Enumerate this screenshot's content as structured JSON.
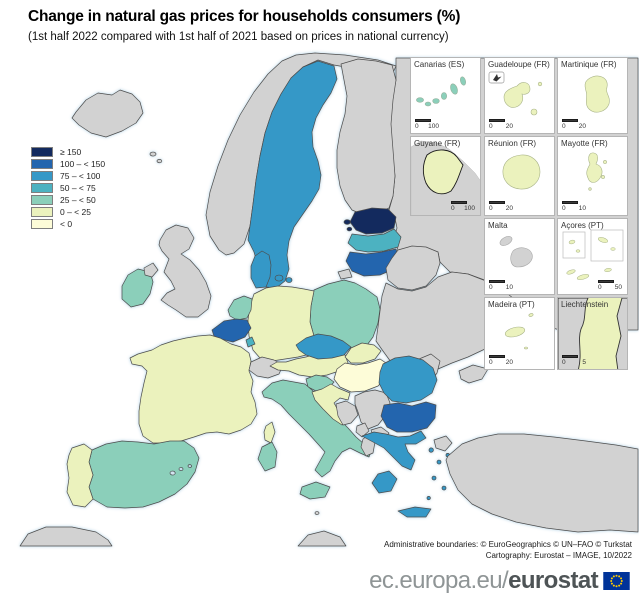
{
  "title": "Change in natural gas prices for households consumers (%)",
  "subtitle": "(1st half 2022 compared with 1st half of 2021 based on prices in national currency)",
  "legend": {
    "items": [
      {
        "label": "≥ 150",
        "category": "ge150"
      },
      {
        "label": "100 – < 150",
        "category": "c100_150"
      },
      {
        "label": "75 – < 100",
        "category": "c75_100"
      },
      {
        "label": "50 – < 75",
        "category": "c50_75"
      },
      {
        "label": "25 – < 50",
        "category": "c25_50"
      },
      {
        "label": "0 – < 25",
        "category": "c0_25"
      },
      {
        "label": "< 0",
        "category": "lt0"
      }
    ]
  },
  "colors": {
    "ge150": "#132a5e",
    "c100_150": "#2365ae",
    "c75_100": "#3598c7",
    "c50_75": "#4cb2c1",
    "c25_50": "#8bcfba",
    "c0_25": "#ebf2bd",
    "lt0": "#fdfcd8",
    "no_data": "#d2d2d2",
    "sea": "#ffffff",
    "eu_flag_blue": "#003399",
    "eu_flag_stars": "#ffcc00"
  },
  "map": {
    "countries": [
      {
        "id": "russia",
        "name": "Russia",
        "category": "no_data"
      },
      {
        "id": "norway",
        "name": "Norway",
        "category": "no_data"
      },
      {
        "id": "finland",
        "name": "Finland",
        "category": "no_data"
      },
      {
        "id": "sweden",
        "name": "Sweden",
        "category": "c75_100"
      },
      {
        "id": "iceland",
        "name": "Iceland",
        "category": "no_data"
      },
      {
        "id": "faroe_islands",
        "name": "Faroe Islands",
        "category": "no_data"
      },
      {
        "id": "estonia",
        "name": "Estonia",
        "category": "ge150"
      },
      {
        "id": "latvia",
        "name": "Latvia",
        "category": "c50_75"
      },
      {
        "id": "lithuania",
        "name": "Lithuania",
        "category": "c100_150"
      },
      {
        "id": "belarus",
        "name": "Belarus",
        "category": "no_data"
      },
      {
        "id": "ukraine",
        "name": "Ukraine",
        "category": "no_data"
      },
      {
        "id": "moldova",
        "name": "Moldova",
        "category": "no_data"
      },
      {
        "id": "poland",
        "name": "Poland",
        "category": "c25_50"
      },
      {
        "id": "germany",
        "name": "Germany",
        "category": "c0_25"
      },
      {
        "id": "denmark",
        "name": "Denmark",
        "category": "c75_100"
      },
      {
        "id": "netherlands",
        "name": "Netherlands",
        "category": "c25_50"
      },
      {
        "id": "belgium",
        "name": "Belgium",
        "category": "c100_150"
      },
      {
        "id": "luxembourg",
        "name": "Luxembourg",
        "category": "c50_75"
      },
      {
        "id": "ireland",
        "name": "Ireland",
        "category": "c25_50"
      },
      {
        "id": "united_kingdom",
        "name": "United Kingdom",
        "category": "no_data"
      },
      {
        "id": "france",
        "name": "France",
        "category": "c0_25"
      },
      {
        "id": "switzerland",
        "name": "Switzerland",
        "category": "no_data"
      },
      {
        "id": "austria",
        "name": "Austria",
        "category": "c0_25"
      },
      {
        "id": "czechia",
        "name": "Czechia",
        "category": "c75_100"
      },
      {
        "id": "slovakia",
        "name": "Slovakia",
        "category": "c0_25"
      },
      {
        "id": "hungary",
        "name": "Hungary",
        "category": "lt0"
      },
      {
        "id": "slovenia",
        "name": "Slovenia",
        "category": "c25_50"
      },
      {
        "id": "italy",
        "name": "Italy",
        "category": "c25_50"
      },
      {
        "id": "croatia",
        "name": "Croatia",
        "category": "c0_25"
      },
      {
        "id": "bosnia_and_herzegovina",
        "name": "Bosnia and Herzegovina",
        "category": "no_data"
      },
      {
        "id": "serbia",
        "name": "Serbia",
        "category": "no_data"
      },
      {
        "id": "montenegro",
        "name": "Montenegro",
        "category": "no_data"
      },
      {
        "id": "albania",
        "name": "Albania",
        "category": "no_data"
      },
      {
        "id": "north_macedonia",
        "name": "North Macedonia",
        "category": "no_data"
      },
      {
        "id": "romania",
        "name": "Romania",
        "category": "c75_100"
      },
      {
        "id": "bulgaria",
        "name": "Bulgaria",
        "category": "c100_150"
      },
      {
        "id": "greece",
        "name": "Greece",
        "category": "c75_100"
      },
      {
        "id": "turkey",
        "name": "Turkey",
        "category": "no_data"
      },
      {
        "id": "spain",
        "name": "Spain",
        "category": "c25_50"
      },
      {
        "id": "portugal",
        "name": "Portugal",
        "category": "c0_25"
      },
      {
        "id": "malta_main",
        "name": "Malta",
        "category": "no_data"
      },
      {
        "id": "africa",
        "name": "North Africa",
        "category": "no_data"
      }
    ]
  },
  "insets": [
    {
      "id": "canarias",
      "label": "Canarias (ES)",
      "category": "c25_50",
      "scale_from": "0",
      "scale_to": "100"
    },
    {
      "id": "guadeloupe",
      "label": "Guadeloupe (FR)",
      "category": "c0_25",
      "scale_from": "0",
      "scale_to": "20"
    },
    {
      "id": "martinique",
      "label": "Martinique (FR)",
      "category": "c0_25",
      "scale_from": "0",
      "scale_to": "20"
    },
    {
      "id": "guyane",
      "label": "Guyane (FR)",
      "category": "c0_25",
      "scale_from": "0",
      "scale_to": "100"
    },
    {
      "id": "reunion",
      "label": "Réunion (FR)",
      "category": "c0_25",
      "scale_from": "0",
      "scale_to": "20"
    },
    {
      "id": "mayotte",
      "label": "Mayotte (FR)",
      "category": "c0_25",
      "scale_from": "0",
      "scale_to": "10"
    },
    {
      "id": "malta",
      "label": "Malta",
      "category": "no_data",
      "scale_from": "0",
      "scale_to": "10"
    },
    {
      "id": "acores",
      "label": "Açores (PT)",
      "category": "c0_25",
      "scale_from": "0",
      "scale_to": "50"
    },
    {
      "id": "madeira",
      "label": "Madeira (PT)",
      "category": "c0_25",
      "scale_from": "0",
      "scale_to": "20"
    },
    {
      "id": "liechtenstein",
      "label": "Liechtenstein",
      "category": "c0_25",
      "scale_from": "0",
      "scale_to": "5"
    }
  ],
  "footer": {
    "attribution_line1": "Administrative boundaries: © EuroGeographics © UN–FAO © Turkstat",
    "attribution_line2": "Cartography: Eurostat – IMAGE, 10/2022",
    "logo_prefix": "ec.europa.eu/",
    "logo_bold": "eurostat"
  }
}
